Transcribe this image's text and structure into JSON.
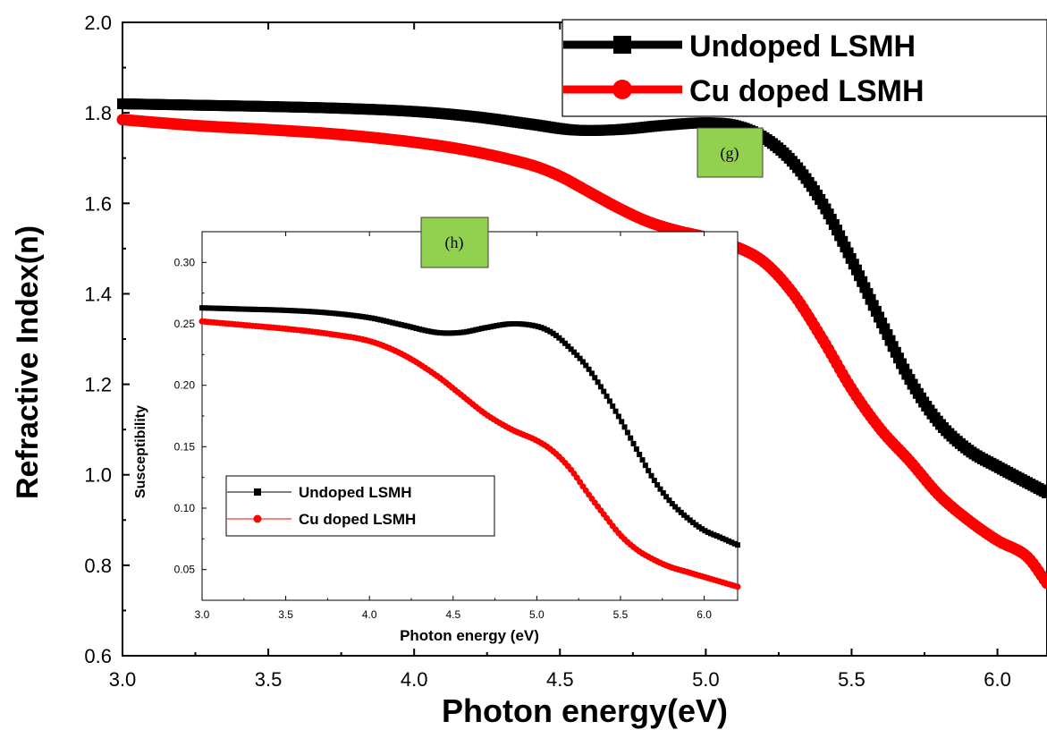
{
  "chart_data": [
    {
      "type": "scatter",
      "xlabel": "Photon energy(eV)",
      "ylabel": "Refractive Index(n)",
      "xlim": [
        3.0,
        6.17
      ],
      "ylim": [
        0.6,
        2.0
      ],
      "x_ticks": [
        "3.0",
        "3.5",
        "4.0",
        "4.5",
        "5.0",
        "5.5",
        "6.0"
      ],
      "y_ticks": [
        "0.6",
        "0.8",
        "1.0",
        "1.2",
        "1.4",
        "1.6",
        "1.8",
        "2.0"
      ],
      "legend_position": "top-right",
      "panel_label": "(g)",
      "series": [
        {
          "name": "Undoped LSMH",
          "color": "#000000",
          "marker": "square",
          "points": [
            [
              3.0,
              1.82
            ],
            [
              3.25,
              1.817
            ],
            [
              3.5,
              1.814
            ],
            [
              3.75,
              1.81
            ],
            [
              4.0,
              1.803
            ],
            [
              4.2,
              1.792
            ],
            [
              4.4,
              1.775
            ],
            [
              4.55,
              1.762
            ],
            [
              4.7,
              1.763
            ],
            [
              4.85,
              1.772
            ],
            [
              5.0,
              1.778
            ],
            [
              5.1,
              1.772
            ],
            [
              5.2,
              1.745
            ],
            [
              5.3,
              1.69
            ],
            [
              5.4,
              1.6
            ],
            [
              5.5,
              1.475
            ],
            [
              5.6,
              1.34
            ],
            [
              5.7,
              1.21
            ],
            [
              5.8,
              1.115
            ],
            [
              5.9,
              1.055
            ],
            [
              6.0,
              1.018
            ],
            [
              6.17,
              0.96
            ]
          ]
        },
        {
          "name": "Cu doped LSMH",
          "color": "#ff0000",
          "marker": "circle",
          "points": [
            [
              3.0,
              1.785
            ],
            [
              3.25,
              1.772
            ],
            [
              3.5,
              1.763
            ],
            [
              3.75,
              1.752
            ],
            [
              4.0,
              1.735
            ],
            [
              4.2,
              1.715
            ],
            [
              4.4,
              1.685
            ],
            [
              4.5,
              1.66
            ],
            [
              4.6,
              1.625
            ],
            [
              4.7,
              1.59
            ],
            [
              4.8,
              1.56
            ],
            [
              4.9,
              1.54
            ],
            [
              5.0,
              1.525
            ],
            [
              5.1,
              1.505
            ],
            [
              5.2,
              1.47
            ],
            [
              5.3,
              1.4
            ],
            [
              5.4,
              1.3
            ],
            [
              5.5,
              1.19
            ],
            [
              5.6,
              1.1
            ],
            [
              5.7,
              1.03
            ],
            [
              5.8,
              0.955
            ],
            [
              5.9,
              0.9
            ],
            [
              6.0,
              0.855
            ],
            [
              6.1,
              0.82
            ],
            [
              6.17,
              0.76
            ]
          ]
        }
      ]
    },
    {
      "type": "scatter",
      "xlabel": "Photon energy (eV)",
      "ylabel": "Susceptibility",
      "xlim": [
        3.0,
        6.2
      ],
      "ylim": [
        0.025,
        0.325
      ],
      "x_ticks": [
        "3.0",
        "3.5",
        "4.0",
        "4.5",
        "5.0",
        "5.5",
        "6.0"
      ],
      "y_ticks": [
        "0.05",
        "0.10",
        "0.15",
        "0.20",
        "0.25",
        "0.30"
      ],
      "legend_position": "bottom-left",
      "panel_label": "(h)",
      "series": [
        {
          "name": "Undoped LSMH",
          "color": "#000000",
          "marker": "square",
          "points": [
            [
              3.0,
              0.263
            ],
            [
              3.25,
              0.262
            ],
            [
              3.5,
              0.261
            ],
            [
              3.75,
              0.259
            ],
            [
              4.0,
              0.255
            ],
            [
              4.2,
              0.249
            ],
            [
              4.4,
              0.243
            ],
            [
              4.55,
              0.243
            ],
            [
              4.7,
              0.247
            ],
            [
              4.85,
              0.25
            ],
            [
              5.0,
              0.248
            ],
            [
              5.1,
              0.242
            ],
            [
              5.2,
              0.23
            ],
            [
              5.3,
              0.215
            ],
            [
              5.4,
              0.195
            ],
            [
              5.5,
              0.172
            ],
            [
              5.6,
              0.147
            ],
            [
              5.7,
              0.123
            ],
            [
              5.8,
              0.105
            ],
            [
              5.9,
              0.092
            ],
            [
              6.0,
              0.082
            ],
            [
              6.1,
              0.076
            ],
            [
              6.2,
              0.07
            ]
          ]
        },
        {
          "name": "Cu doped LSMH",
          "color": "#ff0000",
          "marker": "circle",
          "points": [
            [
              3.0,
              0.252
            ],
            [
              3.25,
              0.249
            ],
            [
              3.5,
              0.246
            ],
            [
              3.75,
              0.242
            ],
            [
              4.0,
              0.236
            ],
            [
              4.2,
              0.225
            ],
            [
              4.4,
              0.208
            ],
            [
              4.55,
              0.192
            ],
            [
              4.7,
              0.176
            ],
            [
              4.85,
              0.164
            ],
            [
              5.0,
              0.155
            ],
            [
              5.1,
              0.146
            ],
            [
              5.2,
              0.132
            ],
            [
              5.3,
              0.113
            ],
            [
              5.4,
              0.095
            ],
            [
              5.5,
              0.078
            ],
            [
              5.6,
              0.066
            ],
            [
              5.7,
              0.058
            ],
            [
              5.8,
              0.052
            ],
            [
              5.9,
              0.048
            ],
            [
              6.0,
              0.044
            ],
            [
              6.1,
              0.04
            ],
            [
              6.2,
              0.036
            ]
          ]
        }
      ]
    }
  ]
}
